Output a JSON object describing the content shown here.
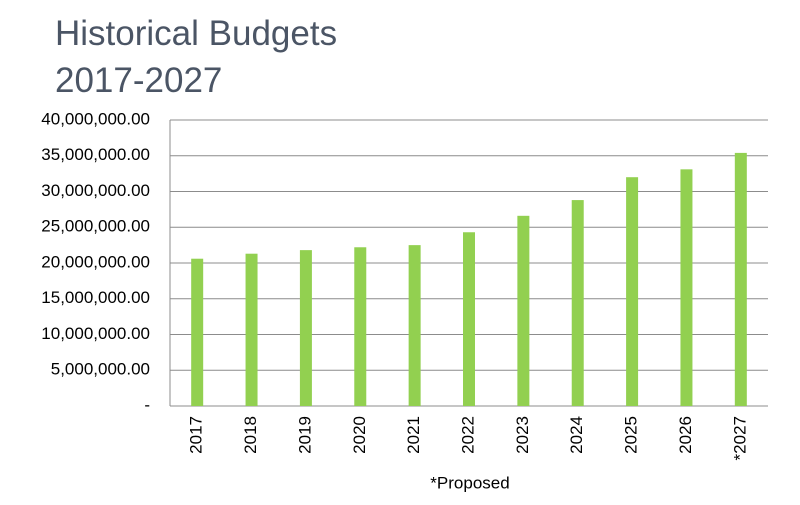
{
  "chart_data": {
    "type": "bar",
    "title": "Historical Budgets",
    "subtitle": "2017-2027",
    "x_label": "*Proposed",
    "categories": [
      "2017",
      "2018",
      "2019",
      "2020",
      "2021",
      "2022",
      "2023",
      "2024",
      "2025",
      "2026",
      "*2027"
    ],
    "values": [
      20600000,
      21300000,
      21800000,
      22200000,
      22500000,
      24300000,
      26600000,
      28800000,
      32000000,
      33100000,
      35400000
    ],
    "color": "#92d050",
    "ylim": [
      0,
      40000000
    ],
    "yticks": [
      {
        "value": 0,
        "label": "-"
      },
      {
        "value": 5000000,
        "label": "5,000,000.00"
      },
      {
        "value": 10000000,
        "label": "10,000,000.00"
      },
      {
        "value": 15000000,
        "label": "15,000,000.00"
      },
      {
        "value": 20000000,
        "label": "20,000,000.00"
      },
      {
        "value": 25000000,
        "label": "25,000,000.00"
      },
      {
        "value": 30000000,
        "label": "30,000,000.00"
      },
      {
        "value": 35000000,
        "label": "35,000,000.00"
      },
      {
        "value": 40000000,
        "label": "40,000,000.00"
      }
    ],
    "grid": true
  }
}
